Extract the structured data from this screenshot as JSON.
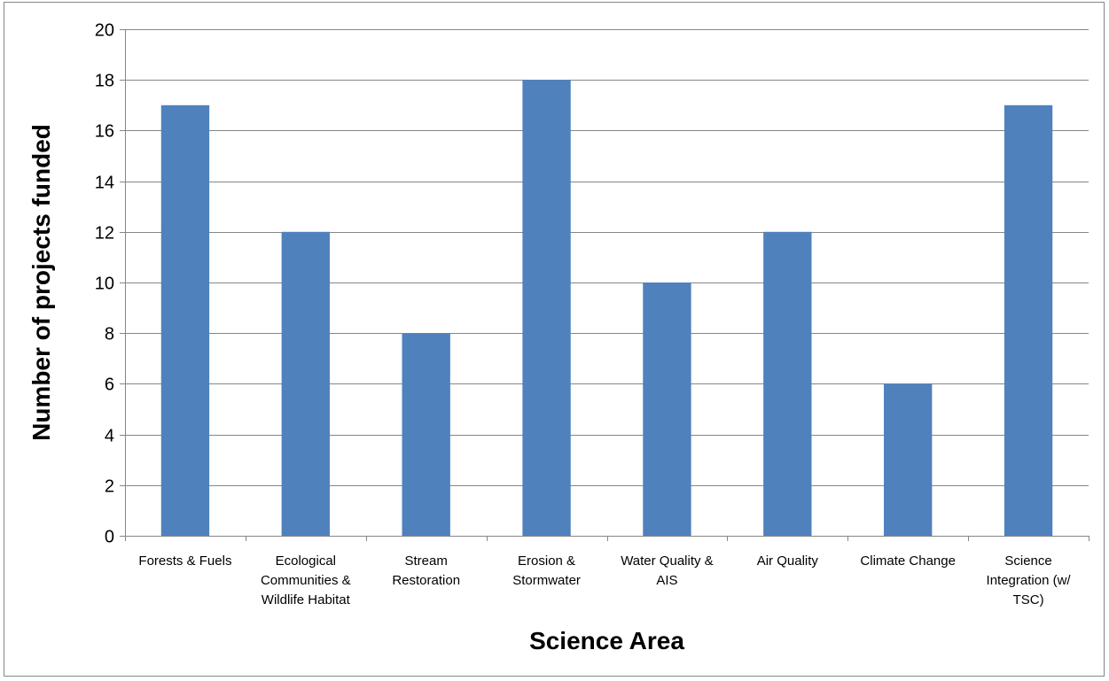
{
  "chart_data": {
    "type": "bar",
    "title": "",
    "xlabel": "Science Area",
    "ylabel": "Number of projects funded",
    "categories": [
      [
        "Forests & Fuels"
      ],
      [
        "Ecological",
        "Communities &",
        "Wildlife Habitat"
      ],
      [
        "Stream",
        "Restoration"
      ],
      [
        "Erosion &",
        "Stormwater"
      ],
      [
        "Water Quality &",
        "AIS"
      ],
      [
        "Air Quality"
      ],
      [
        "Climate Change"
      ],
      [
        "Science",
        "Integration (w/",
        "TSC)"
      ]
    ],
    "values": [
      17,
      12,
      8,
      18,
      10,
      12,
      6,
      17
    ],
    "ylim": [
      0,
      20
    ],
    "yticks": [
      0,
      2,
      4,
      6,
      8,
      10,
      12,
      14,
      16,
      18,
      20
    ],
    "grid": true,
    "legend": "none",
    "colors": {
      "bar": "#4F81BD",
      "grid": "#868686",
      "axis": "#868686"
    }
  }
}
